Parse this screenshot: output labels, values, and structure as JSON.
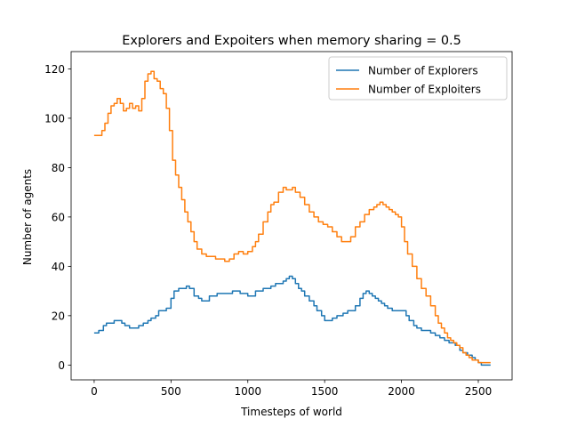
{
  "chart_data": {
    "type": "line",
    "title": "Explorers and Expoiters when memory sharing = 0.5",
    "xlabel": "Timesteps of world",
    "ylabel": "Number of agents",
    "xlim": [
      -150,
      2720
    ],
    "ylim": [
      -6,
      127
    ],
    "xticks": [
      0,
      500,
      1000,
      1500,
      2000,
      2500
    ],
    "yticks": [
      0,
      20,
      40,
      60,
      80,
      100,
      120
    ],
    "grid": false,
    "legend": "top-right",
    "series": [
      {
        "name": "Number of Explorers",
        "color": "#1f77b4",
        "x": [
          0,
          30,
          60,
          80,
          100,
          130,
          150,
          180,
          200,
          230,
          260,
          290,
          320,
          350,
          370,
          400,
          420,
          450,
          470,
          500,
          520,
          550,
          570,
          600,
          620,
          650,
          680,
          700,
          750,
          800,
          850,
          900,
          950,
          1000,
          1050,
          1100,
          1150,
          1180,
          1200,
          1230,
          1250,
          1270,
          1290,
          1310,
          1330,
          1350,
          1370,
          1400,
          1430,
          1450,
          1480,
          1500,
          1530,
          1550,
          1580,
          1600,
          1620,
          1650,
          1680,
          1700,
          1730,
          1750,
          1770,
          1790,
          1810,
          1830,
          1850,
          1870,
          1890,
          1910,
          1940,
          1970,
          2000,
          2030,
          2050,
          2080,
          2100,
          2130,
          2160,
          2190,
          2220,
          2250,
          2280,
          2310,
          2350,
          2380,
          2400,
          2430,
          2460,
          2480,
          2500,
          2520,
          2540,
          2560,
          2580
        ],
        "y": [
          13,
          14,
          16,
          17,
          17,
          18,
          18,
          17,
          16,
          15,
          15,
          16,
          17,
          18,
          19,
          20,
          22,
          22,
          23,
          27,
          30,
          31,
          31,
          32,
          31,
          28,
          27,
          26,
          28,
          29,
          29,
          30,
          29,
          28,
          30,
          31,
          32,
          33,
          33,
          34,
          35,
          36,
          35,
          33,
          31,
          30,
          28,
          26,
          24,
          22,
          20,
          18,
          18,
          19,
          20,
          20,
          21,
          22,
          22,
          24,
          27,
          29,
          30,
          29,
          28,
          27,
          26,
          25,
          24,
          23,
          22,
          22,
          22,
          20,
          18,
          16,
          15,
          14,
          14,
          13,
          12,
          11,
          10,
          9,
          8,
          6,
          5,
          4,
          3,
          2,
          1,
          0,
          0,
          0,
          0
        ]
      },
      {
        "name": "Number of Exploiters",
        "color": "#ff7f0e",
        "x": [
          0,
          30,
          50,
          70,
          90,
          110,
          130,
          150,
          170,
          190,
          210,
          230,
          250,
          270,
          290,
          310,
          330,
          350,
          370,
          390,
          410,
          430,
          450,
          470,
          490,
          510,
          530,
          550,
          570,
          590,
          610,
          630,
          650,
          670,
          700,
          730,
          760,
          790,
          820,
          850,
          880,
          910,
          940,
          970,
          1000,
          1030,
          1050,
          1070,
          1100,
          1130,
          1150,
          1170,
          1200,
          1230,
          1250,
          1270,
          1290,
          1310,
          1340,
          1370,
          1400,
          1430,
          1460,
          1490,
          1520,
          1550,
          1580,
          1610,
          1640,
          1670,
          1700,
          1730,
          1760,
          1790,
          1820,
          1840,
          1860,
          1880,
          1900,
          1920,
          1940,
          1960,
          1980,
          2000,
          2020,
          2040,
          2070,
          2100,
          2130,
          2160,
          2190,
          2220,
          2240,
          2260,
          2280,
          2300,
          2320,
          2340,
          2360,
          2380,
          2400,
          2420,
          2440,
          2460,
          2480,
          2500,
          2520,
          2540,
          2560,
          2580
        ],
        "y": [
          93,
          93,
          95,
          98,
          102,
          105,
          106,
          108,
          106,
          103,
          104,
          106,
          104,
          105,
          103,
          108,
          115,
          118,
          119,
          116,
          115,
          112,
          110,
          104,
          95,
          83,
          77,
          72,
          67,
          62,
          58,
          54,
          50,
          47,
          45,
          44,
          44,
          43,
          43,
          42,
          43,
          45,
          46,
          45,
          46,
          48,
          50,
          53,
          58,
          62,
          65,
          66,
          70,
          72,
          71,
          71,
          72,
          70,
          68,
          65,
          62,
          60,
          58,
          57,
          56,
          54,
          52,
          50,
          50,
          52,
          56,
          58,
          61,
          63,
          64,
          65,
          66,
          65,
          64,
          63,
          62,
          61,
          60,
          56,
          50,
          45,
          40,
          35,
          31,
          28,
          24,
          20,
          17,
          15,
          13,
          11,
          10,
          9,
          8,
          7,
          5,
          4,
          3,
          2,
          2,
          1,
          1,
          1,
          1,
          1
        ]
      }
    ]
  }
}
